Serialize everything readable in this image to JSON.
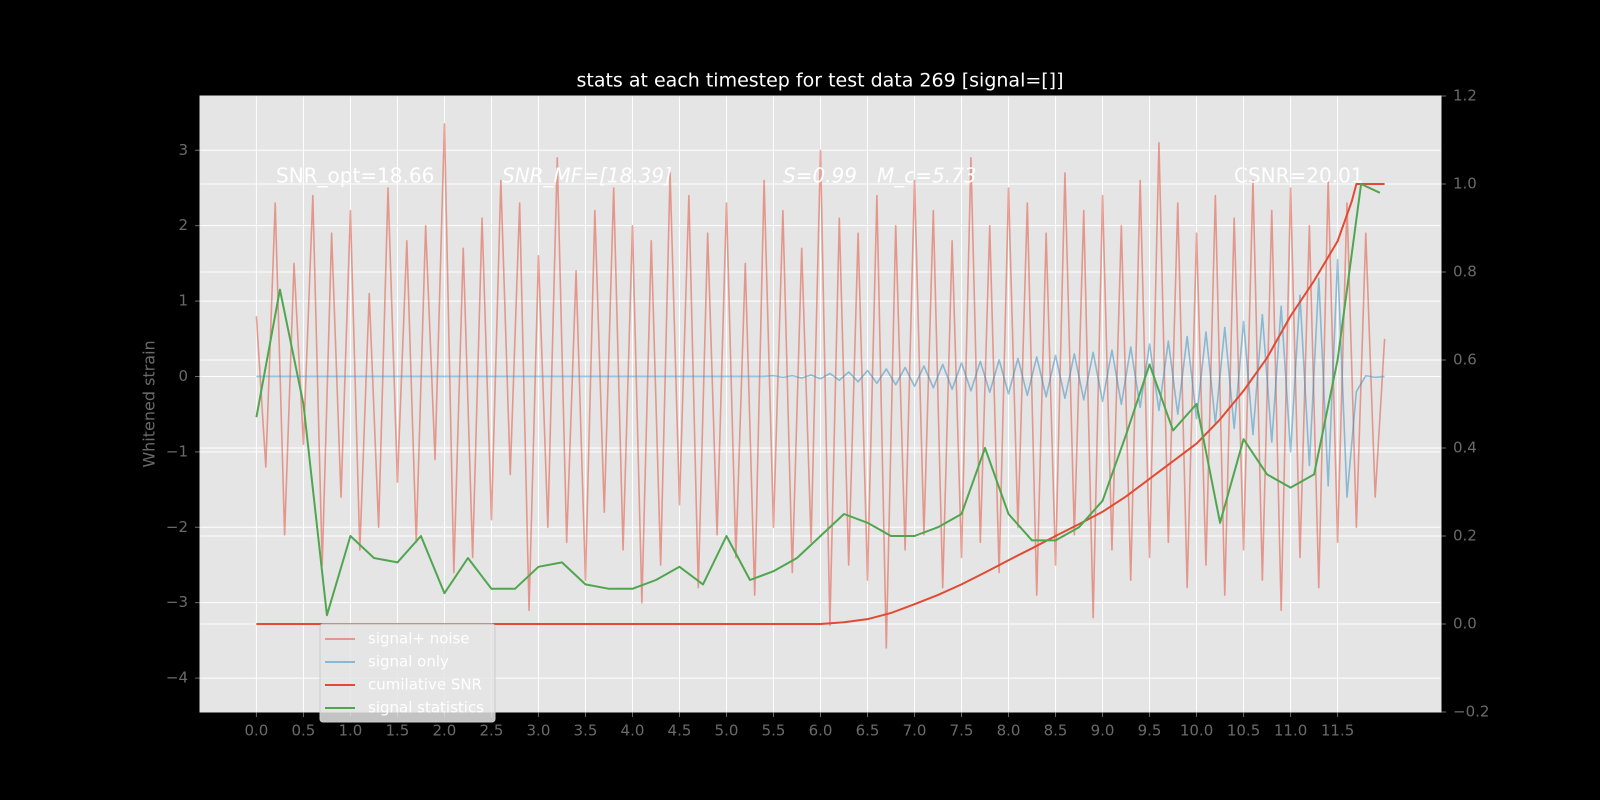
{
  "chart_data": {
    "type": "line",
    "title": "stats at each timestep for test data 269 [signal=[]]",
    "ylabel": "Whitened strain",
    "annotations": [
      "SNR_opt=18.66",
      "SNR_MF=[18.39]",
      "S=0.99",
      "M_c=5.73",
      "CSNR=20.01"
    ],
    "grid": true,
    "legend_loc": "lower left",
    "xlim": [
      -0.6,
      12.6
    ],
    "ylim": [
      -4.45,
      3.72
    ],
    "y2lim": [
      -0.2,
      1.2
    ],
    "xticks": [
      {
        "value": 0,
        "label": "0.0"
      },
      0.5,
      {
        "value": 1,
        "label": "1.0"
      },
      1.5,
      {
        "value": 2,
        "label": "2.0"
      },
      2.5,
      {
        "value": 3,
        "label": "3.0"
      },
      3.5,
      {
        "value": 4,
        "label": "4.0"
      },
      4.5,
      {
        "value": 5,
        "label": "5.0"
      },
      5.5,
      {
        "value": 6,
        "label": "6.0"
      },
      6.5,
      {
        "value": 7,
        "label": "7.0"
      },
      7.5,
      {
        "value": 8,
        "label": "8.0"
      },
      8.5,
      {
        "value": 9,
        "label": "9.0"
      },
      9.5,
      {
        "value": 10,
        "label": "10.0"
      },
      10.5,
      {
        "value": 11,
        "label": "11.0"
      },
      11.5
    ],
    "yticks": [
      {
        "value": -4,
        "label": "−4"
      },
      {
        "value": -3,
        "label": "−3"
      },
      {
        "value": -2,
        "label": "−2"
      },
      {
        "value": -1,
        "label": "−1"
      },
      0,
      1,
      2,
      3
    ],
    "y2ticks": [
      {
        "value": -0.2,
        "label": "−0.2"
      },
      {
        "value": 0,
        "label": "0.0"
      },
      0.2,
      0.4,
      0.6,
      0.8,
      {
        "value": 1,
        "label": "1.0"
      },
      1.2
    ],
    "x": [
      0.0,
      0.1,
      0.2,
      0.3,
      0.4,
      0.5,
      0.6,
      0.7,
      0.8,
      0.9,
      1.0,
      1.1,
      1.2,
      1.3,
      1.4,
      1.5,
      1.6,
      1.7,
      1.8,
      1.9,
      2.0,
      2.1,
      2.2,
      2.3,
      2.4,
      2.5,
      2.6,
      2.7,
      2.8,
      2.9,
      3.0,
      3.1,
      3.2,
      3.3,
      3.4,
      3.5,
      3.6,
      3.7,
      3.8,
      3.9,
      4.0,
      4.1,
      4.2,
      4.3,
      4.4,
      4.5,
      4.6,
      4.7,
      4.8,
      4.9,
      5.0,
      5.1,
      5.2,
      5.3,
      5.4,
      5.5,
      5.6,
      5.7,
      5.8,
      5.9,
      6.0,
      6.1,
      6.2,
      6.3,
      6.4,
      6.5,
      6.6,
      6.7,
      6.8,
      6.9,
      7.0,
      7.1,
      7.2,
      7.3,
      7.4,
      7.5,
      7.6,
      7.7,
      7.8,
      7.9,
      8.0,
      8.1,
      8.2,
      8.3,
      8.4,
      8.5,
      8.6,
      8.7,
      8.8,
      8.9,
      9.0,
      9.1,
      9.2,
      9.3,
      9.4,
      9.5,
      9.6,
      9.7,
      9.8,
      9.9,
      10.0,
      10.1,
      10.2,
      10.3,
      10.4,
      10.5,
      10.6,
      10.7,
      10.8,
      10.9,
      11.0,
      11.1,
      11.2,
      11.3,
      11.4,
      11.5,
      11.6,
      11.7,
      11.8,
      11.9,
      12.0
    ],
    "series": [
      {
        "name": "signal+ noise",
        "color": "#E24A33",
        "alpha": 0.5,
        "values": [
          0.8,
          -1.2,
          2.3,
          -2.1,
          1.5,
          -0.9,
          2.4,
          -2.5,
          1.9,
          -1.6,
          2.2,
          -2.3,
          1.1,
          -2.0,
          2.5,
          -1.4,
          1.8,
          -2.2,
          2.0,
          -1.1,
          3.35,
          -2.6,
          1.7,
          -2.4,
          2.1,
          -1.9,
          2.6,
          -1.3,
          2.3,
          -3.1,
          1.6,
          -2.0,
          2.9,
          -2.2,
          1.4,
          -2.7,
          2.2,
          -1.8,
          2.5,
          -2.3,
          2.0,
          -3.0,
          1.8,
          -2.5,
          2.7,
          -1.7,
          2.4,
          -2.8,
          1.9,
          -2.1,
          2.3,
          -2.4,
          1.5,
          -2.9,
          2.6,
          -2.0,
          2.2,
          -2.6,
          1.7,
          -2.2,
          3.0,
          -3.3,
          2.1,
          -2.5,
          1.9,
          -2.7,
          2.4,
          -3.6,
          2.0,
          -2.3,
          2.6,
          -2.1,
          2.2,
          -2.8,
          1.8,
          -2.4,
          2.9,
          -2.2,
          2.0,
          -2.6,
          2.5,
          -2.0,
          2.3,
          -2.9,
          1.9,
          -2.5,
          2.7,
          -2.1,
          2.2,
          -3.2,
          2.4,
          -2.3,
          2.0,
          -2.7,
          2.6,
          -2.4,
          3.1,
          -2.2,
          2.3,
          -2.8,
          1.9,
          -2.5,
          2.4,
          -2.9,
          2.1,
          -2.3,
          2.6,
          -2.7,
          2.2,
          -3.1,
          2.5,
          -2.4,
          2.0,
          -2.8,
          2.6,
          -2.2,
          2.3,
          -2.0,
          1.9,
          -1.6,
          0.5
        ]
      },
      {
        "name": "signal only",
        "color": "#348ABD",
        "alpha": 0.5,
        "values": [
          0,
          0,
          0,
          0,
          0,
          0,
          0,
          0,
          0,
          0,
          0,
          0,
          0,
          0,
          0,
          0,
          0,
          0,
          0,
          0,
          0,
          0,
          0,
          0,
          0,
          0,
          0,
          0,
          0,
          0,
          0,
          0,
          0,
          0,
          0,
          0,
          0,
          0,
          0,
          0,
          0,
          0,
          0,
          0,
          0,
          0,
          0,
          0,
          0,
          0,
          0,
          0,
          0,
          0,
          0,
          0.01,
          -0.01,
          0.01,
          -0.02,
          0.02,
          -0.03,
          0.04,
          -0.05,
          0.06,
          -0.07,
          0.08,
          -0.09,
          0.1,
          -0.11,
          0.12,
          -0.13,
          0.14,
          -0.15,
          0.16,
          -0.17,
          0.18,
          -0.19,
          0.2,
          -0.21,
          0.22,
          -0.23,
          0.24,
          -0.25,
          0.26,
          -0.27,
          0.28,
          -0.29,
          0.3,
          -0.31,
          0.32,
          -0.33,
          0.35,
          -0.37,
          0.39,
          -0.41,
          0.43,
          -0.45,
          0.47,
          -0.5,
          0.53,
          -0.56,
          0.59,
          -0.62,
          0.65,
          -0.69,
          0.73,
          -0.77,
          0.82,
          -0.87,
          0.93,
          -1.0,
          1.08,
          -1.18,
          1.3,
          -1.45,
          1.55,
          -1.6,
          -0.2,
          0.01,
          -0.01,
          0
        ]
      },
      {
        "name": "cumilative SNR",
        "color": "#E24A33",
        "axis": "y2",
        "x": [
          0,
          6.0,
          6.25,
          6.5,
          6.75,
          7.0,
          7.25,
          7.5,
          7.75,
          8.0,
          8.25,
          8.5,
          8.75,
          9.0,
          9.25,
          9.5,
          9.75,
          10.0,
          10.25,
          10.5,
          10.75,
          11.0,
          11.25,
          11.5,
          11.65,
          11.7,
          12.0
        ],
        "values": [
          0,
          0,
          0.004,
          0.011,
          0.025,
          0.045,
          0.066,
          0.09,
          0.117,
          0.145,
          0.172,
          0.2,
          0.227,
          0.255,
          0.29,
          0.33,
          0.37,
          0.41,
          0.465,
          0.53,
          0.605,
          0.7,
          0.78,
          0.87,
          0.96,
          1.0,
          1.0
        ]
      },
      {
        "name": "signal statistics",
        "color": "#4fa64f",
        "axis": "y2",
        "x": [
          0,
          0.25,
          0.5,
          0.75,
          1.0,
          1.25,
          1.5,
          1.75,
          2.0,
          2.25,
          2.5,
          2.75,
          3.0,
          3.25,
          3.5,
          3.75,
          4.0,
          4.25,
          4.5,
          4.75,
          5.0,
          5.25,
          5.5,
          5.75,
          6.0,
          6.25,
          6.5,
          6.75,
          7.0,
          7.25,
          7.5,
          7.75,
          8.0,
          8.25,
          8.5,
          8.75,
          9.0,
          9.25,
          9.5,
          9.75,
          10.0,
          10.25,
          10.5,
          10.75,
          11.0,
          11.25,
          11.5,
          11.75,
          11.95
        ],
        "values": [
          0.47,
          0.76,
          0.5,
          0.02,
          0.2,
          0.15,
          0.14,
          0.2,
          0.07,
          0.15,
          0.08,
          0.08,
          0.13,
          0.14,
          0.09,
          0.08,
          0.08,
          0.1,
          0.13,
          0.09,
          0.2,
          0.1,
          0.12,
          0.15,
          0.2,
          0.25,
          0.23,
          0.2,
          0.2,
          0.22,
          0.25,
          0.4,
          0.25,
          0.19,
          0.19,
          0.22,
          0.28,
          0.43,
          0.59,
          0.44,
          0.5,
          0.23,
          0.42,
          0.34,
          0.31,
          0.34,
          0.6,
          1.0,
          0.98
        ]
      }
    ]
  }
}
